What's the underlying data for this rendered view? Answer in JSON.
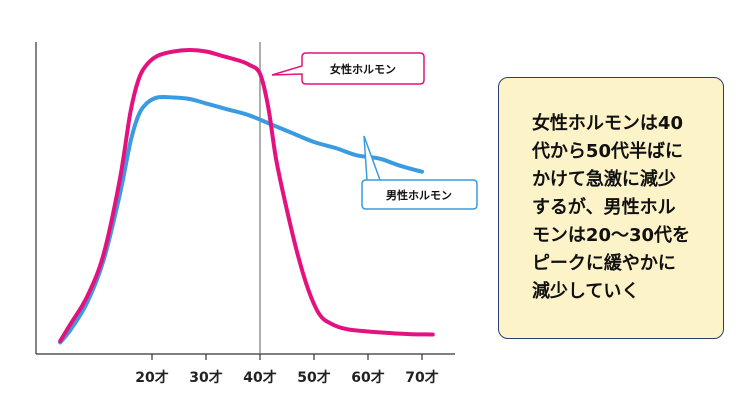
{
  "chart_data": {
    "type": "line",
    "title": "",
    "xlabel": "",
    "ylabel": "",
    "x_ticks": [
      20,
      30,
      40,
      50,
      60,
      70
    ],
    "x_tick_labels": [
      "20才",
      "30才",
      "40才",
      "50才",
      "60才",
      "70才"
    ],
    "xlim": [
      0,
      75
    ],
    "ylim": [
      0,
      100
    ],
    "grid": false,
    "legend": "callouts",
    "reference_line_x": 40,
    "series": [
      {
        "name": "女性ホルモン",
        "color": "#e3127f",
        "x": [
          3,
          5,
          8,
          11,
          14,
          16,
          17.5,
          19,
          21,
          24,
          27,
          30,
          33,
          36,
          38,
          40,
          41.5,
          43,
          45,
          47,
          49,
          51,
          53,
          56,
          60,
          64,
          68,
          72
        ],
        "y": [
          1,
          7,
          16,
          30,
          55,
          78,
          89,
          94,
          97,
          98.5,
          99,
          98.5,
          97,
          95.5,
          94,
          91,
          80,
          62,
          45,
          30,
          18,
          10,
          7,
          5,
          4.2,
          3.7,
          3.3,
          3.2
        ]
      },
      {
        "name": "男性ホルモン",
        "color": "#3a9be0",
        "x": [
          3,
          5,
          8,
          11,
          14,
          16,
          17.5,
          19,
          21,
          24,
          27,
          30,
          34,
          38,
          42,
          46,
          50,
          54,
          58,
          62,
          66,
          70
        ],
        "y": [
          0.5,
          5,
          14,
          28,
          50,
          68,
          77,
          81,
          83,
          83,
          82.5,
          81,
          79,
          77,
          74,
          71,
          68,
          66,
          63.5,
          62.5,
          60,
          58
        ]
      }
    ]
  },
  "callouts": {
    "female": "女性ホルモン",
    "male": "男性ホルモン"
  },
  "note": {
    "text": "女性ホルモンは40\n代から50代半ばに\nかけて急激に減少\nするが、男性ホル\nモンは20〜30代を\nピークに緩やかに\n減少していく"
  }
}
